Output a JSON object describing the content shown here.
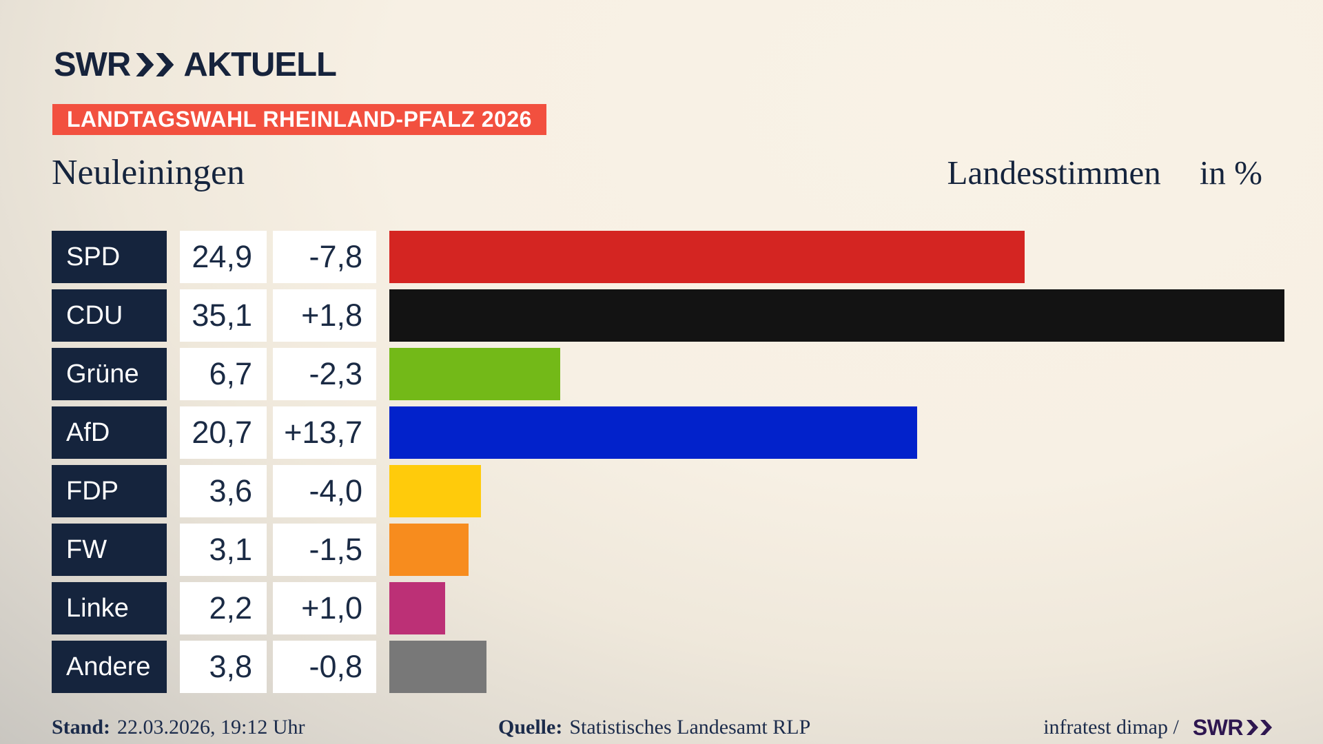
{
  "header": {
    "logo": {
      "brand": "SWR",
      "product": "AKTUELL"
    },
    "badge": "LANDTAGSWAHL RHEINLAND-PFALZ 2026",
    "region": "Neuleiningen",
    "measure": "Landesstimmen",
    "unit": "in %"
  },
  "chart_data": {
    "type": "bar",
    "orientation": "horizontal",
    "title": "Landtagswahl Rheinland-Pfalz 2026 – Neuleiningen – Landesstimmen in %",
    "categories": [
      "SPD",
      "CDU",
      "Grüne",
      "AfD",
      "FDP",
      "FW",
      "Linke",
      "Andere"
    ],
    "values": [
      24.9,
      35.1,
      6.7,
      20.7,
      3.6,
      3.1,
      2.2,
      3.8
    ],
    "value_labels": [
      "24,9",
      "35,1",
      "6,7",
      "20,7",
      "3,6",
      "3,1",
      "2,2",
      "3,8"
    ],
    "changes": [
      -7.8,
      1.8,
      -2.3,
      13.7,
      -4.0,
      -1.5,
      1.0,
      -0.8
    ],
    "change_labels": [
      "-7,8",
      "+1,8",
      "-2,3",
      "+13,7",
      "-4,0",
      "-1,5",
      "+1,0",
      "-0,8"
    ],
    "bar_colors": [
      "#d42522",
      "#131313",
      "#73b918",
      "#0222cb",
      "#ffcb0b",
      "#f78c1e",
      "#bc3076",
      "#787878"
    ],
    "xlim": [
      0,
      36.6
    ],
    "unit": "%",
    "grid": false,
    "legend": false
  },
  "footer": {
    "stand_label": "Stand:",
    "stand_value": "22.03.2026, 19:12 Uhr",
    "quelle_label": "Quelle:",
    "quelle_value": "Statistisches Landesamt RLP",
    "credit": "infratest dimap /",
    "credit_brand": "SWR"
  },
  "colors": {
    "navy": "#15243d",
    "badge_red": "#f2503f",
    "cell_white": "#ffffff",
    "background_cream": "#f7f0e4",
    "background_gray": "#c9c6c0",
    "footer_brand_purple": "#2e1650"
  }
}
